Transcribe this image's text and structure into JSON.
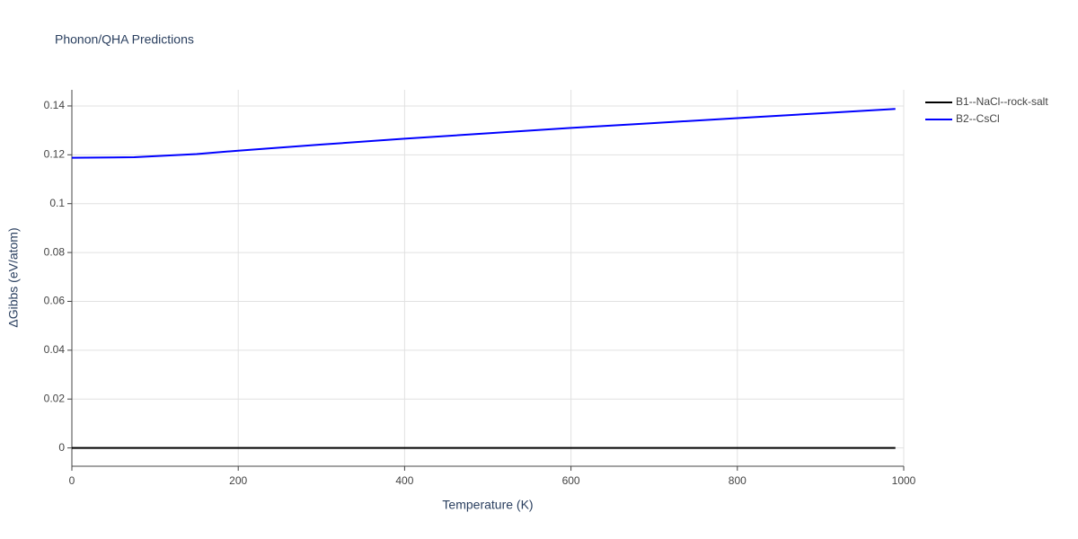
{
  "chart_data": {
    "type": "line",
    "title": "Phonon/QHA Predictions",
    "x_label": "Temperature (K)",
    "y_label": "ΔGibbs (eV/atom)",
    "x": [
      0,
      75,
      150,
      200,
      300,
      400,
      500,
      600,
      700,
      800,
      900,
      990
    ],
    "series": [
      {
        "name": "B1--NaCl--rock-salt",
        "color": "#000000",
        "values": [
          0,
          0,
          0,
          0,
          0,
          0,
          0,
          0,
          0,
          0,
          0,
          0
        ]
      },
      {
        "name": "B2--CsCl",
        "color": "#0000ff",
        "values": [
          0.1188,
          0.119,
          0.1203,
          0.1217,
          0.1242,
          0.1266,
          0.1288,
          0.131,
          0.133,
          0.135,
          0.137,
          0.1388
        ]
      }
    ],
    "xlim": [
      0,
      1000
    ],
    "xticks": [
      0,
      200,
      400,
      600,
      800,
      1000
    ],
    "ylim": [
      -0.0075,
      0.1466
    ],
    "yticks": [
      0,
      0.02,
      0.04,
      0.06,
      0.08,
      0.1,
      0.12,
      0.14
    ],
    "grid": true,
    "legend": "outside-top-right"
  }
}
